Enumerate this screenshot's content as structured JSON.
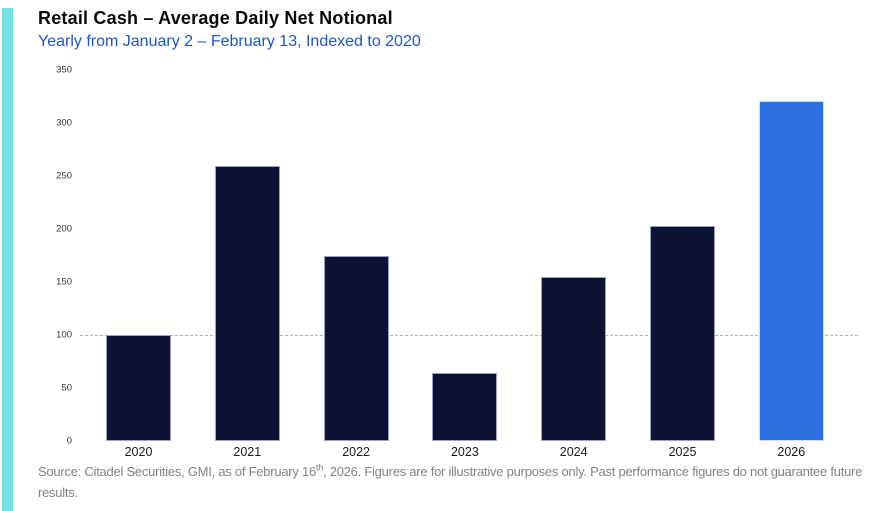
{
  "header": {
    "title": "Retail Cash – Average Daily Net Notional",
    "subtitle": "Yearly from January 2 – February 13, Indexed to 2020"
  },
  "footer": {
    "text_before_sup": "Source: Citadel Securities, GMI, as of February 16",
    "sup": "th",
    "text_after_sup": ", 2026. Figures are for illustrative purposes only. Past performance figures do not guarantee future results."
  },
  "colors": {
    "accent_stripe": "#6FE4E1",
    "bar_default": "#0C1233",
    "bar_default_border": "#9aa3bd",
    "bar_highlight": "#2B6FE0",
    "bar_highlight_border": "#cfdcf2",
    "subtitle_blue": "#1E55C8",
    "gridline_gray": "#b3b3b3",
    "footer_gray": "#828282"
  },
  "chart_data": {
    "type": "bar",
    "title": "Retail Cash – Average Daily Net Notional",
    "subtitle": "Yearly from January 2 – February 13, Indexed to 2020",
    "categories": [
      "2020",
      "2021",
      "2022",
      "2023",
      "2024",
      "2025",
      "2026"
    ],
    "values": [
      100,
      259,
      175,
      64,
      155,
      203,
      321
    ],
    "highlight_index": 6,
    "highlight_category": "2026",
    "xlabel": "",
    "ylabel": "",
    "ylim": [
      0,
      350
    ],
    "ytick_step": 50,
    "ytick_labels": [
      "0",
      "50",
      "100",
      "150",
      "200",
      "250",
      "300",
      "350"
    ],
    "gridline_at": 100,
    "grid": "single horizontal dashed line at y=100",
    "legend": "none"
  }
}
